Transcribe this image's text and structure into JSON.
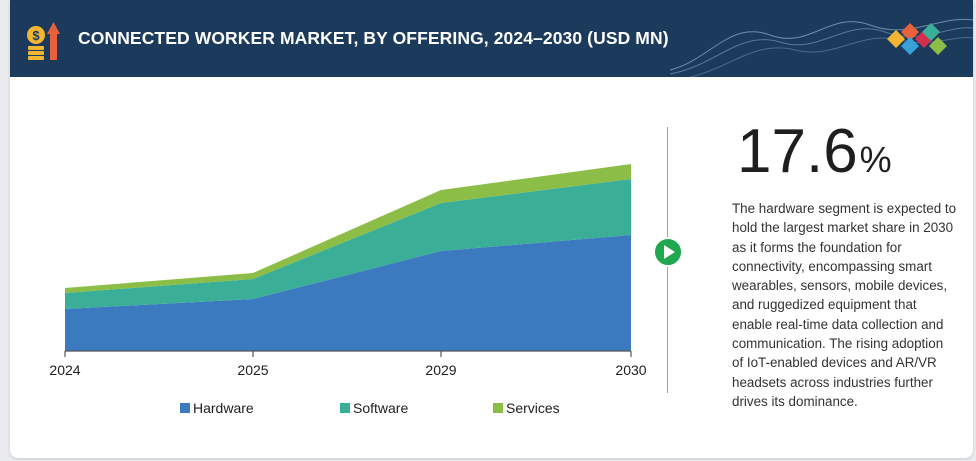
{
  "header": {
    "title": "CONNECTED WORKER MARKET, BY OFFERING, 2024–2030 (USD MN)",
    "icon": "money-growth-icon",
    "logo": "diamond-logo"
  },
  "callout": {
    "value": "17.6",
    "unit": "%",
    "description": "The hardware segment is expected to hold the largest market share in 2030 as it forms the foundation for connectivity, encompassing smart wearables, sensors, mobile devices, and ruggedized equipment that enable real-time data collection and communication. The rising adoption of IoT-enabled devices and AR/VR headsets across industries further drives its dominance."
  },
  "colors": {
    "header_bg": "#1b3a5c",
    "hardware": "#3b7abf",
    "software": "#3aae97",
    "services": "#8cbd47",
    "play": "#1fa84f"
  },
  "chart_data": {
    "type": "area",
    "stacked": true,
    "title": "",
    "x": [
      "2024",
      "2025",
      "2029",
      "2030"
    ],
    "series": [
      {
        "name": "Hardware",
        "values": [
          42,
          52,
          100,
          116
        ]
      },
      {
        "name": "Software",
        "values": [
          16,
          20,
          48,
          56
        ]
      },
      {
        "name": "Services",
        "values": [
          5,
          6,
          13,
          15
        ]
      }
    ],
    "ylim": [
      0,
      190
    ],
    "grid": false,
    "legend": "bottom"
  }
}
